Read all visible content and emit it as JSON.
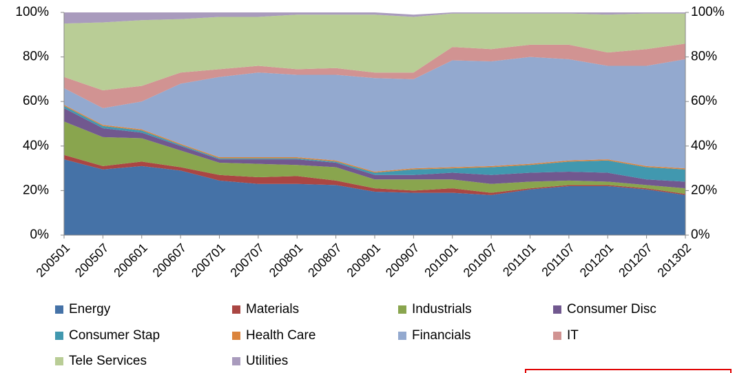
{
  "chart_data": {
    "type": "stacked_area_percent",
    "categories": [
      "200501",
      "200507",
      "200601",
      "200607",
      "200701",
      "200707",
      "200801",
      "200807",
      "200901",
      "200907",
      "201001",
      "201007",
      "201101",
      "201107",
      "201201",
      "201207",
      "201302"
    ],
    "series": [
      {
        "name": "Energy",
        "color": "#4572a7",
        "values": [
          34,
          29.5,
          31,
          29,
          24.5,
          23,
          23,
          22.5,
          19.5,
          19,
          19,
          18,
          20.5,
          22,
          22,
          20.5,
          18
        ]
      },
      {
        "name": "Materials",
        "color": "#aa4643",
        "values": [
          2,
          1.5,
          2,
          1.5,
          2.5,
          3,
          3.5,
          2,
          1.5,
          1,
          2,
          1,
          0.5,
          0.5,
          0.5,
          0.5,
          0.5
        ]
      },
      {
        "name": "Industrials",
        "color": "#89a54e",
        "values": [
          15,
          13,
          10.5,
          7.5,
          5.5,
          6,
          5,
          6,
          4,
          5,
          4,
          4,
          3,
          2,
          1.5,
          1.5,
          2.5
        ]
      },
      {
        "name": "Consumer Disc",
        "color": "#71588f",
        "values": [
          6,
          4,
          2.5,
          2,
          1.5,
          2,
          2.5,
          2,
          2,
          2,
          3,
          4,
          4,
          4,
          4,
          2.5,
          3
        ]
      },
      {
        "name": "Consumer Stap",
        "color": "#4198af",
        "values": [
          1,
          1,
          1,
          0.5,
          0.5,
          0.5,
          0.5,
          0.5,
          1,
          2.5,
          2,
          3.5,
          3.5,
          4.5,
          5.5,
          5.5,
          5.5
        ]
      },
      {
        "name": "Health Care",
        "color": "#db843d",
        "values": [
          0.5,
          0.5,
          0.5,
          0.5,
          0.5,
          0.5,
          0.5,
          0.5,
          0.5,
          0.5,
          0.5,
          0.5,
          0.5,
          0.5,
          0.5,
          0.5,
          0.5
        ]
      },
      {
        "name": "Financials",
        "color": "#93a9cf",
        "values": [
          7.5,
          7.5,
          12.5,
          27,
          36,
          38,
          37,
          38.5,
          42,
          40,
          48,
          47,
          48,
          45.5,
          42,
          45,
          49
        ]
      },
      {
        "name": "IT",
        "color": "#d19392",
        "values": [
          5,
          8,
          7,
          5,
          3.5,
          3,
          2.5,
          3,
          2.5,
          3,
          6,
          5.5,
          5.5,
          6.5,
          6,
          7.5,
          7
        ]
      },
      {
        "name": "Tele Services",
        "color": "#b9cd96",
        "values": [
          24,
          30.5,
          29.5,
          24,
          23.5,
          22,
          24.5,
          24,
          26,
          25,
          15,
          16,
          14,
          14,
          17,
          16,
          13.5
        ]
      },
      {
        "name": "Utilities",
        "color": "#a99bbd",
        "values": [
          5,
          4.5,
          3.5,
          3,
          2,
          2,
          1,
          1,
          1,
          1,
          0.5,
          0.5,
          0.5,
          0.5,
          1,
          0.5,
          0.5
        ]
      }
    ],
    "ylim": [
      0,
      100
    ],
    "yticks": [
      {
        "value": 0,
        "label": "0%"
      },
      {
        "value": 20,
        "label": "20%"
      },
      {
        "value": 40,
        "label": "40%"
      },
      {
        "value": 60,
        "label": "60%"
      },
      {
        "value": 80,
        "label": "80%"
      },
      {
        "value": 100,
        "label": "100%"
      }
    ],
    "y2lim": [
      0,
      100
    ],
    "y2ticks": [
      {
        "value": 0,
        "label": "0%"
      },
      {
        "value": 20,
        "label": "20%"
      },
      {
        "value": 40,
        "label": "40%"
      },
      {
        "value": 60,
        "label": "60%"
      },
      {
        "value": 80,
        "label": "80%"
      },
      {
        "value": 100,
        "label": "100%"
      }
    ],
    "legend": "bottom"
  }
}
